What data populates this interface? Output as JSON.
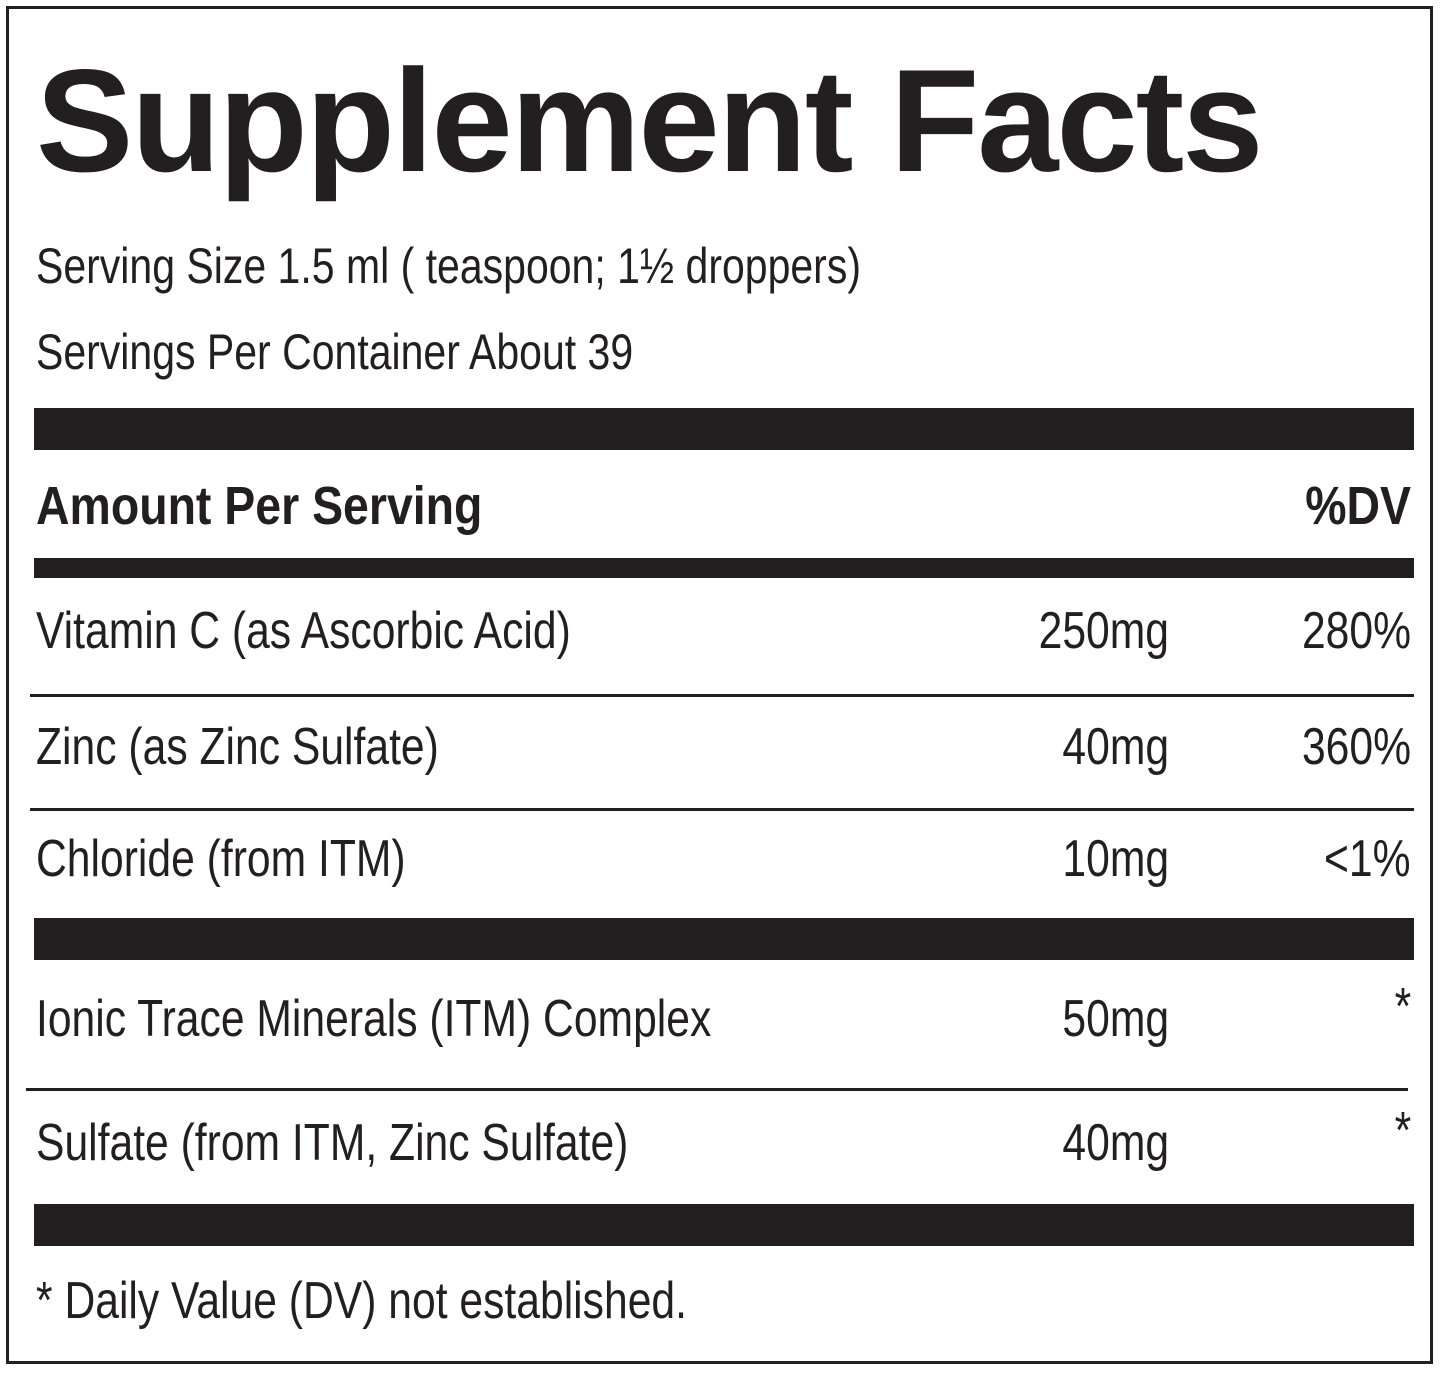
{
  "title": "Supplement Facts",
  "serving_size": "Serving Size 1.5 ml ( teaspoon; 1½ droppers)",
  "servings_per_container": "Servings Per Container About 39",
  "header": {
    "amount_label": "Amount Per Serving",
    "dv_label": "%DV"
  },
  "nutrients": [
    {
      "name": "Vitamin C (as Ascorbic Acid)",
      "amount": "250mg",
      "dv": "280%"
    },
    {
      "name": "Zinc (as Zinc Sulfate)",
      "amount": "40mg",
      "dv": "360%"
    },
    {
      "name": "Chloride (from ITM)",
      "amount": "10mg",
      "dv": "<1%"
    }
  ],
  "other_ingredients": [
    {
      "name": "Ionic Trace Minerals (ITM) Complex",
      "amount": "50mg",
      "dv": "*"
    },
    {
      "name": "Sulfate (from ITM, Zinc Sulfate)",
      "amount": "40mg",
      "dv": "*"
    }
  ],
  "footnote": "* Daily Value (DV) not established."
}
